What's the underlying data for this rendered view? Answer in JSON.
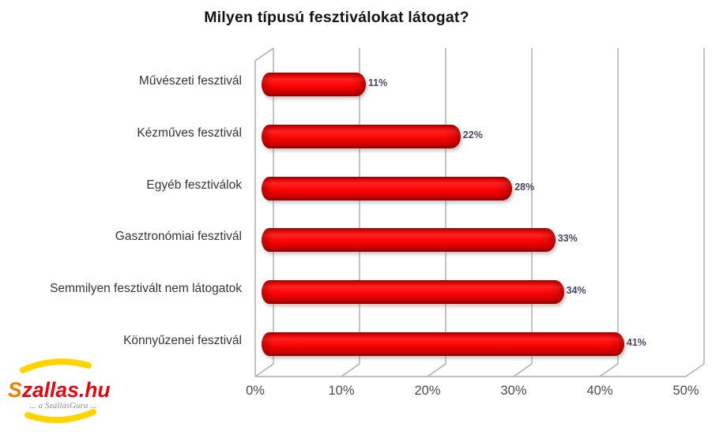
{
  "title": "Milyen típusú fesztiválokat látogat?",
  "chart_data": {
    "type": "bar",
    "orientation": "horizontal",
    "style": "3d-cylinder",
    "title": "Milyen típusú fesztiválokat látogat?",
    "categories": [
      "Művészeti fesztivál",
      "Kézműves fesztivál",
      "Egyéb fesztiválok",
      "Gasztronómiai fesztivál",
      "Semmilyen fesztivált nem látogatok",
      "Könnyűzenei fesztivál"
    ],
    "values": [
      11,
      22,
      28,
      33,
      34,
      41
    ],
    "value_labels": [
      "11%",
      "22%",
      "28%",
      "33%",
      "34%",
      "41%"
    ],
    "xlabel": "",
    "ylabel": "",
    "xlim": [
      0,
      50
    ],
    "x_ticks": [
      "0%",
      "10%",
      "20%",
      "30%",
      "40%",
      "50%"
    ],
    "tick_values": [
      0,
      10,
      20,
      30,
      40,
      50
    ],
    "grid": true,
    "legend": false,
    "bar_color": "#ee0000",
    "value_label_color": "#454867",
    "axis_label_color": "#4b4b4b",
    "gridline_color": "#ababab"
  },
  "logo": {
    "brand": "Szallas.hu",
    "brand_first_letter": "S",
    "brand_rest": "zallas.hu",
    "tagline": "... a SzállásGuru ...",
    "arc_color": "#FFD400",
    "first_letter_color": "#EF7D00",
    "brand_color": "#E30613",
    "tagline_color": "#8E8E8E"
  }
}
